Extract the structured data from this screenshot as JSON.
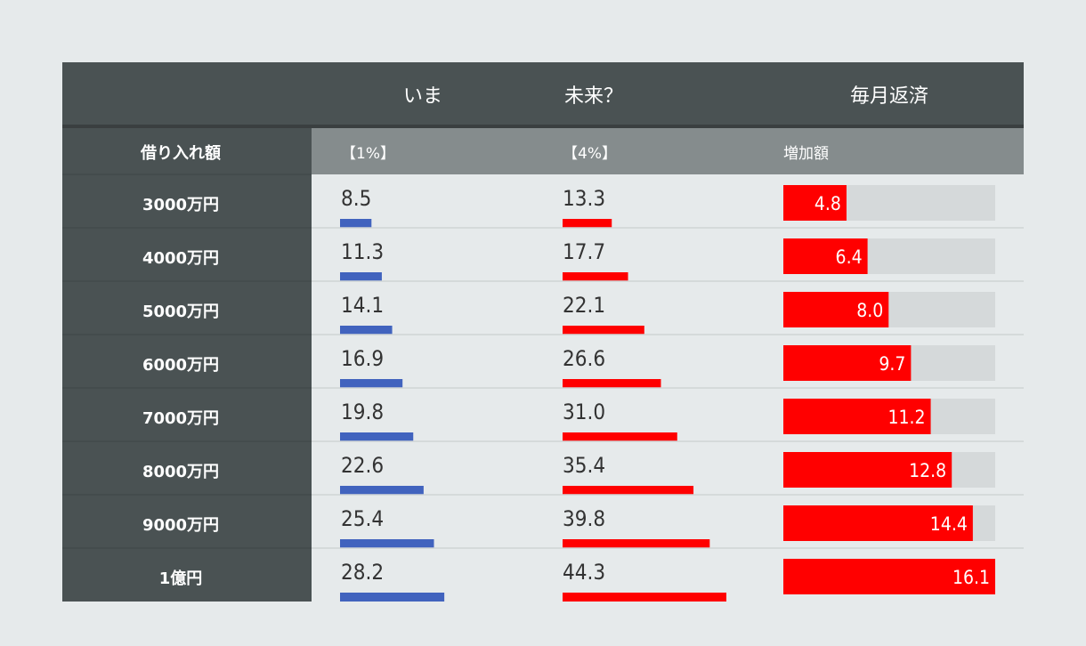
{
  "header": {
    "col_now": "いま",
    "col_future": "未来？",
    "col_payment": "毎月返済"
  },
  "subheader": {
    "loan_amount": "借り入れ額",
    "rate_now": "【1%】",
    "rate_future": "【4%】",
    "increase": "増加額"
  },
  "colors": {
    "now_bar": "#4163be",
    "future_bar": "#ff0000",
    "increase_bar": "#ff0000",
    "increase_track": "#d5d9da",
    "header_bg": "#4a5253",
    "subheader_bg": "#858c8d",
    "label_col_bg": "#4a5253",
    "body_bg": "#e6eaeb"
  },
  "chart_data": {
    "type": "table",
    "categories": [
      "3000万円",
      "4000万円",
      "5000万円",
      "6000万円",
      "7000万円",
      "8000万円",
      "9000万円",
      "1億円"
    ],
    "series": [
      {
        "name": "いま",
        "rate": "【1%】",
        "values": [
          8.5,
          11.3,
          14.1,
          16.9,
          19.8,
          22.6,
          25.4,
          28.2
        ]
      },
      {
        "name": "未来？",
        "rate": "【4%】",
        "values": [
          13.3,
          17.7,
          22.1,
          26.6,
          31.0,
          35.4,
          39.8,
          44.3
        ]
      },
      {
        "name": "増加額",
        "values": [
          4.8,
          6.4,
          8.0,
          9.7,
          11.2,
          12.8,
          14.4,
          16.1
        ]
      }
    ],
    "value_labels": {
      "now": [
        "8.5",
        "11.3",
        "14.1",
        "16.9",
        "19.8",
        "22.6",
        "25.4",
        "28.2"
      ],
      "future": [
        "13.3",
        "17.7",
        "22.1",
        "26.6",
        "31.0",
        "35.4",
        "39.8",
        "44.3"
      ],
      "increase": [
        "4.8",
        "6.4",
        "8.0",
        "9.7",
        "11.2",
        "12.8",
        "14.4",
        "16.1"
      ]
    },
    "bar_scale_max": 44.3,
    "increase_track_max": 16.1
  }
}
